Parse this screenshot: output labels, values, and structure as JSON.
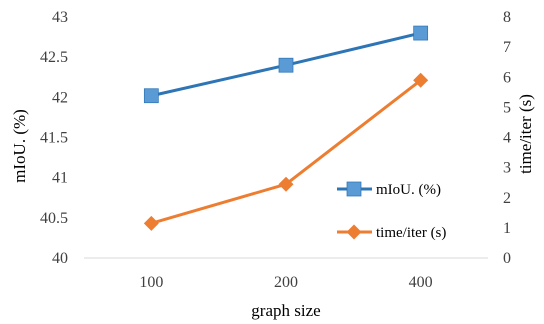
{
  "chart_data": {
    "type": "line",
    "categories": [
      "100",
      "200",
      "400"
    ],
    "xlabel": "graph size",
    "ylabel": "mIoU. (%)",
    "ylabel_right": "time/iter  (s)",
    "ylim": [
      40,
      43
    ],
    "yticks": [
      "40",
      "40.5",
      "41",
      "41.5",
      "42",
      "42.5",
      "43"
    ],
    "ylim_right": [
      0,
      8
    ],
    "yticks_right": [
      "0",
      "1",
      "2",
      "3",
      "4",
      "5",
      "6",
      "7",
      "8"
    ],
    "grid": false,
    "legend_position": "right",
    "series": [
      {
        "name": "mIoU. (%)",
        "axis": "left",
        "marker": "square",
        "color": "#2e75b6",
        "marker_color": "#5b9bd5",
        "values": [
          42.02,
          42.4,
          42.8
        ]
      },
      {
        "name": "time/iter (s)",
        "axis": "right",
        "marker": "diamond",
        "color": "#ed7d31",
        "marker_color": "#ed7d31",
        "values": [
          1.15,
          2.45,
          5.9
        ]
      }
    ]
  }
}
